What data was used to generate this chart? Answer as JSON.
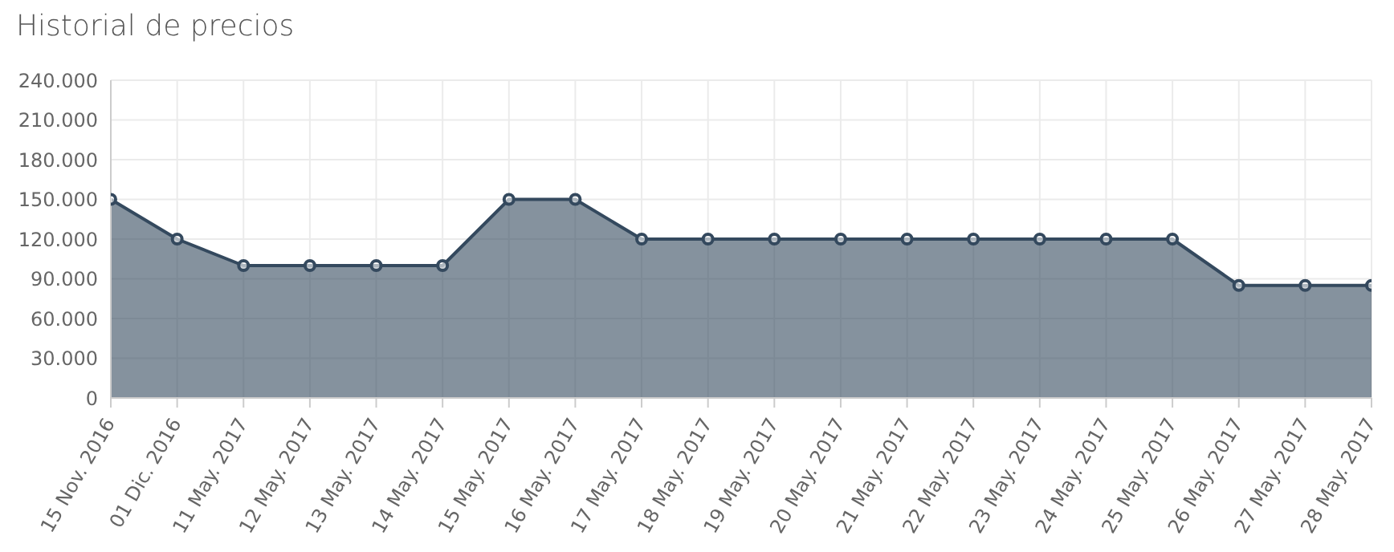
{
  "chart_data": {
    "type": "area",
    "title": "Historial de precios",
    "categories": [
      "15 Nov. 2016",
      "01 Dic. 2016",
      "11 May. 2017",
      "12 May. 2017",
      "13 May. 2017",
      "14 May. 2017",
      "15 May. 2017",
      "16 May. 2017",
      "17 May. 2017",
      "18 May. 2017",
      "19 May. 2017",
      "20 May. 2017",
      "21 May. 2017",
      "22 May. 2017",
      "23 May. 2017",
      "24 May. 2017",
      "25 May. 2017",
      "26 May. 2017",
      "27 May. 2017",
      "28 May. 2017"
    ],
    "series": [
      {
        "color": "#34495e",
        "values": [
          150000,
          120000,
          100000,
          100000,
          100000,
          100000,
          150000,
          150000,
          120000,
          120000,
          120000,
          120000,
          120000,
          120000,
          120000,
          120000,
          120000,
          85000,
          85000,
          85000
        ]
      }
    ],
    "ylim": [
      0,
      240000
    ],
    "yticks": [
      {
        "value": 0,
        "label": "0"
      },
      {
        "value": 30000,
        "label": "30.000"
      },
      {
        "value": 60000,
        "label": "60.000"
      },
      {
        "value": 90000,
        "label": "90.000"
      },
      {
        "value": 120000,
        "label": "120.000"
      },
      {
        "value": 150000,
        "label": "150.000"
      },
      {
        "value": 180000,
        "label": "180.000"
      },
      {
        "value": 210000,
        "label": "210.000"
      },
      {
        "value": 240000,
        "label": "240.000"
      }
    ],
    "grid": true,
    "marker": "circle",
    "legend": false
  }
}
